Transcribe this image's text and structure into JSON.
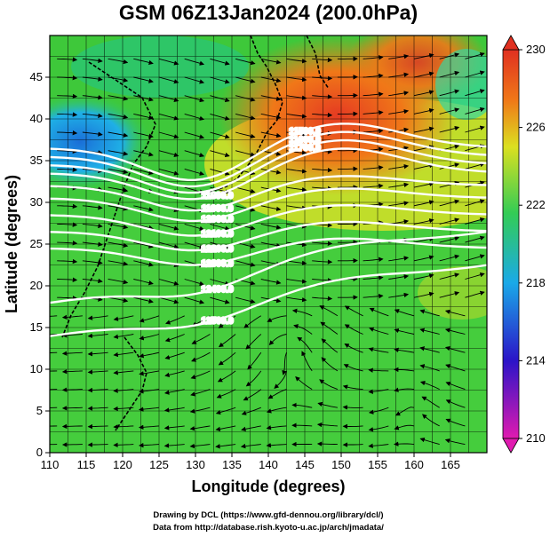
{
  "chart_data": {
    "type": "heatmap",
    "title": "GSM 06Z13Jan2024 (200.0hPa)",
    "xlabel": "Longitude (degrees)",
    "ylabel": "Latitude  (degrees)",
    "xlim": [
      110,
      170
    ],
    "ylim": [
      0,
      50
    ],
    "x_ticks": [
      "110",
      "115",
      "120",
      "125",
      "130",
      "135",
      "140",
      "145",
      "150",
      "155",
      "160",
      "165"
    ],
    "y_ticks": [
      "0",
      "5",
      "10",
      "15",
      "20",
      "25",
      "30",
      "35",
      "40",
      "45"
    ],
    "colorbar": {
      "min": 210,
      "max": 230,
      "ticks": [
        "210",
        "214",
        "218",
        "222",
        "226",
        "230"
      ],
      "colors": [
        "#e01bb0",
        "#2b14c8",
        "#1aa9e8",
        "#33cc55",
        "#dbe020",
        "#f07818",
        "#e03020"
      ]
    },
    "temperature_field": [
      {
        "lon": 112,
        "lat": 37,
        "value": 216
      },
      {
        "lon": 120,
        "lat": 40,
        "value": 219
      },
      {
        "lon": 125,
        "lat": 45,
        "value": 222
      },
      {
        "lon": 140,
        "lat": 36,
        "value": 228
      },
      {
        "lon": 148,
        "lat": 38,
        "value": 229
      },
      {
        "lon": 152,
        "lat": 45,
        "value": 229
      },
      {
        "lon": 160,
        "lat": 35,
        "value": 225
      },
      {
        "lon": 140,
        "lat": 20,
        "value": 222
      },
      {
        "lon": 140,
        "lat": 10,
        "value": 221
      },
      {
        "lon": 122,
        "lat": 5,
        "value": 221
      }
    ],
    "contour_labels": [
      "11500.0",
      "11600.0",
      "11700.0",
      "11800.0",
      "11900.0",
      "12000.0",
      "12100.0",
      "12200.0",
      "12300.0",
      "12400.0",
      "12500.0"
    ],
    "footer_lines": [
      "Drawing by DCL (https://www.gfd-dennou.org/library/dcl/)",
      "Data from http://database.rish.kyoto-u.ac.jp/arch/jmadata/"
    ]
  }
}
